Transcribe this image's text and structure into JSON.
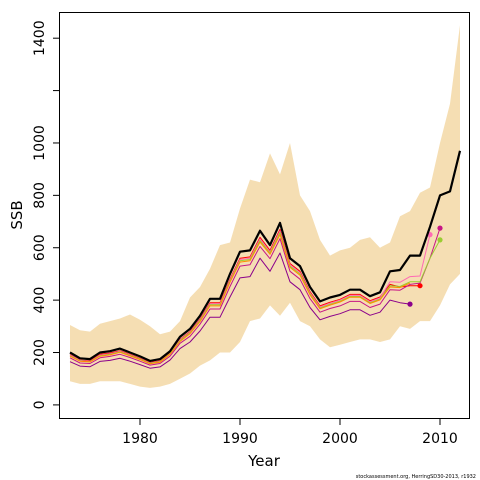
{
  "chart_data": {
    "type": "line",
    "xlabel": "Year",
    "ylabel": "SSB",
    "xlim": [
      1972,
      2013
    ],
    "ylim": [
      -50,
      1500
    ],
    "x_ticks": [
      1980,
      1990,
      2000,
      2010
    ],
    "y_ticks": [
      0,
      200,
      400,
      600,
      800,
      1000,
      1200,
      1400
    ],
    "y_tick_labels": [
      "0",
      "200",
      "400",
      "600",
      "800",
      "1000",
      "",
      "1400"
    ],
    "credit": "stockassessment.org, HerringSD30-2013, r1932",
    "colors": {
      "band": "#f5deb3",
      "main": "#000000",
      "retro1": "#ff0000",
      "retro2": "#ff69b4",
      "retro3": "#c71585",
      "retro4": "#9acd32",
      "retro5": "#8b008b",
      "retro6": "#ff8c00"
    },
    "years": [
      1973,
      1974,
      1975,
      1976,
      1977,
      1978,
      1979,
      1980,
      1981,
      1982,
      1983,
      1984,
      1985,
      1986,
      1987,
      1988,
      1989,
      1990,
      1991,
      1992,
      1993,
      1994,
      1995,
      1996,
      1997,
      1998,
      1999,
      2000,
      2001,
      2002,
      2003,
      2004,
      2005,
      2006,
      2007,
      2008,
      2009,
      2010,
      2011,
      2012
    ],
    "band_upper": [
      305,
      285,
      280,
      310,
      320,
      330,
      345,
      325,
      300,
      270,
      280,
      320,
      410,
      450,
      520,
      610,
      620,
      750,
      860,
      850,
      960,
      880,
      1000,
      800,
      740,
      630,
      570,
      590,
      600,
      630,
      640,
      600,
      620,
      720,
      740,
      810,
      830,
      1000,
      1150,
      1450
    ],
    "band_lower": [
      90,
      80,
      80,
      90,
      90,
      90,
      80,
      70,
      65,
      70,
      80,
      100,
      120,
      150,
      170,
      200,
      200,
      240,
      320,
      330,
      380,
      340,
      390,
      320,
      300,
      250,
      220,
      230,
      240,
      250,
      250,
      240,
      250,
      300,
      290,
      320,
      320,
      380,
      460,
      500
    ],
    "series": [
      {
        "key": "main",
        "values": [
          200,
          178,
          175,
          200,
          205,
          215,
          200,
          185,
          168,
          175,
          205,
          260,
          290,
          340,
          405,
          405,
          500,
          585,
          590,
          665,
          610,
          695,
          560,
          530,
          450,
          395,
          410,
          420,
          440,
          440,
          415,
          430,
          510,
          515,
          570,
          570,
          680,
          800,
          815,
          970
        ]
      },
      {
        "key": "retro1",
        "values": [
          192,
          171,
          168,
          193,
          198,
          207,
          193,
          178,
          162,
          168,
          198,
          250,
          280,
          328,
          390,
          390,
          480,
          560,
          565,
          640,
          590,
          670,
          540,
          510,
          432,
          378,
          392,
          403,
          422,
          422,
          398,
          412,
          460,
          450,
          455,
          455
        ],
        "end_marker": true
      },
      {
        "key": "retro2",
        "values": [
          190,
          170,
          166,
          190,
          195,
          205,
          191,
          176,
          160,
          166,
          196,
          248,
          277,
          325,
          386,
          386,
          476,
          555,
          560,
          634,
          584,
          664,
          535,
          505,
          428,
          374,
          388,
          400,
          418,
          418,
          394,
          408,
          470,
          468,
          490,
          492,
          650
        ],
        "end_marker": true
      },
      {
        "key": "retro3",
        "values": [
          180,
          160,
          158,
          180,
          185,
          193,
          181,
          167,
          152,
          158,
          186,
          235,
          262,
          308,
          366,
          366,
          452,
          530,
          535,
          605,
          558,
          635,
          510,
          480,
          406,
          354,
          368,
          378,
          395,
          395,
          372,
          385,
          440,
          438,
          460,
          465,
          560,
          675
        ],
        "end_marker": true
      },
      {
        "key": "retro4",
        "values": [
          188,
          168,
          165,
          188,
          193,
          203,
          189,
          175,
          159,
          165,
          195,
          245,
          275,
          322,
          382,
          382,
          472,
          550,
          555,
          628,
          580,
          658,
          530,
          500,
          424,
          370,
          384,
          396,
          414,
          414,
          390,
          404,
          455,
          452,
          470,
          470,
          560,
          630
        ],
        "end_marker": true
      },
      {
        "key": "retro5",
        "values": [
          165,
          148,
          146,
          166,
          170,
          178,
          167,
          154,
          140,
          145,
          171,
          215,
          240,
          282,
          335,
          335,
          412,
          485,
          490,
          560,
          510,
          580,
          470,
          440,
          372,
          325,
          338,
          348,
          363,
          363,
          342,
          354,
          400,
          390,
          385
        ],
        "end_marker": true
      },
      {
        "key": "retro6",
        "values": [
          186,
          167,
          164,
          186,
          191,
          201,
          187,
          173,
          157,
          163,
          193,
          242,
          272,
          318,
          378,
          378,
          468,
          545,
          550,
          622,
          575,
          650,
          525,
          495,
          420,
          367,
          381,
          393,
          411,
          411,
          387,
          401,
          450,
          448,
          465
        ],
        "end_marker": false
      }
    ]
  }
}
